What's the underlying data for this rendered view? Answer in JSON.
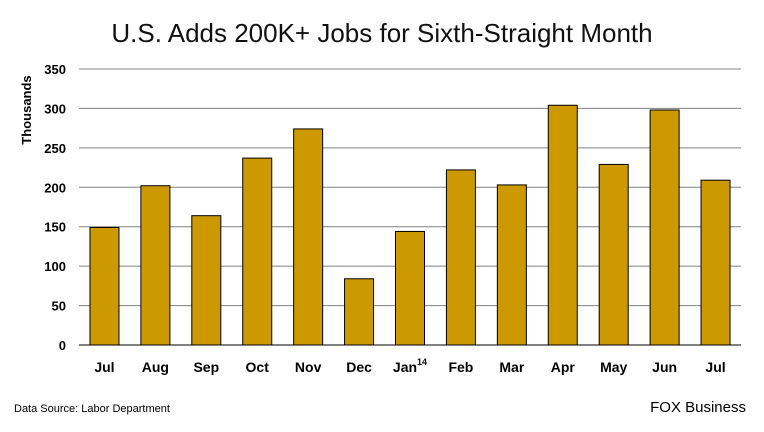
{
  "chart_data": {
    "type": "bar",
    "title": "U.S. Adds 200K+ Jobs for Sixth-Straight Month",
    "ylabel": "Thousands",
    "xlabel": "",
    "categories": [
      "Jul",
      "Aug",
      "Sep",
      "Oct",
      "Nov",
      "Dec",
      "Jan",
      "Feb",
      "Mar",
      "Apr",
      "May",
      "Jun",
      "Jul"
    ],
    "category_superscripts": [
      "",
      "",
      "",
      "",
      "",
      "",
      "14",
      "",
      "",
      "",
      "",
      "",
      ""
    ],
    "values": [
      149,
      202,
      164,
      237,
      274,
      84,
      144,
      222,
      203,
      304,
      229,
      298,
      209
    ],
    "ylim": [
      0,
      350
    ],
    "yticks": [
      0,
      50,
      100,
      150,
      200,
      250,
      300,
      350
    ],
    "grid": true,
    "bar_color": "#cc9900",
    "bar_edge_color": "#000000"
  },
  "footer": {
    "source": "Data Source: Labor Department",
    "brand": "FOX Business"
  }
}
